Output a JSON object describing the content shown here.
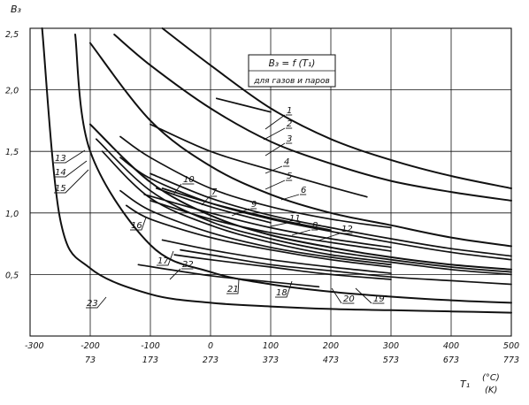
{
  "chart_data": {
    "type": "line",
    "title": "",
    "ylabel": "B₃",
    "xlabel_top": "T₁",
    "xlabel_unit_c": "(°C)",
    "xlabel_unit_k": "(K)",
    "formula": "B₃ = f (T₁)",
    "subtitle": "для газов и паров",
    "xlim": [
      -300,
      500
    ],
    "ylim": [
      0,
      2.5
    ],
    "grid": true,
    "x_ticks_c": [
      "-300",
      "-200",
      "-100",
      "0",
      "100",
      "200",
      "300",
      "400",
      "500"
    ],
    "x_ticks_k": [
      "73",
      "173",
      "273",
      "373",
      "473",
      "573",
      "673",
      "773"
    ],
    "y_ticks": [
      "2,5",
      "2,0",
      "1,5",
      "1,0",
      "0,5"
    ],
    "series": [
      {
        "name": "1",
        "x": [
          10,
          100
        ],
        "y": [
          1.93,
          1.82
        ]
      },
      {
        "name": "2",
        "x": [
          -80,
          0,
          100,
          200,
          300,
          400,
          500
        ],
        "y": [
          2.5,
          2.2,
          1.85,
          1.6,
          1.43,
          1.3,
          1.2
        ]
      },
      {
        "name": "3",
        "x": [
          -160,
          -100,
          0,
          100,
          200,
          300,
          400,
          500
        ],
        "y": [
          2.45,
          2.2,
          1.85,
          1.58,
          1.4,
          1.26,
          1.17,
          1.1
        ]
      },
      {
        "name": "4",
        "x": [
          -100,
          0,
          100,
          200,
          260
        ],
        "y": [
          1.72,
          1.5,
          1.35,
          1.21,
          1.13
        ]
      },
      {
        "name": "5",
        "x": [
          -200,
          -100,
          0,
          100,
          200,
          300,
          400,
          500
        ],
        "y": [
          2.38,
          1.75,
          1.38,
          1.15,
          1.0,
          0.9,
          0.8,
          0.73
        ]
      },
      {
        "name": "6",
        "x": [
          -150,
          -100,
          0,
          100,
          200,
          300
        ],
        "y": [
          1.62,
          1.45,
          1.2,
          1.05,
          0.95,
          0.88
        ]
      },
      {
        "name": "7",
        "x": [
          -150,
          -100,
          0,
          100,
          200,
          300,
          400,
          500
        ],
        "y": [
          1.45,
          1.28,
          1.08,
          0.95,
          0.85,
          0.76,
          0.68,
          0.62
        ]
      },
      {
        "name": "8",
        "x": [
          -100,
          0,
          100,
          200,
          300,
          400,
          500
        ],
        "y": [
          1.32,
          1.12,
          0.98,
          0.88,
          0.79,
          0.71,
          0.65
        ]
      },
      {
        "name": "9",
        "x": [
          -80,
          0,
          100,
          200
        ],
        "y": [
          1.2,
          1.08,
          0.96,
          0.86
        ]
      },
      {
        "name": "10",
        "x": [
          -90,
          0,
          100
        ],
        "y": [
          1.2,
          1.05,
          0.92
        ]
      },
      {
        "name": "11",
        "x": [
          -110,
          0,
          100,
          200,
          300
        ],
        "y": [
          1.15,
          1.0,
          0.88,
          0.79,
          0.72
        ]
      },
      {
        "name": "12",
        "x": [
          -100,
          0,
          100,
          200,
          300
        ],
        "y": [
          1.1,
          0.95,
          0.84,
          0.76,
          0.69
        ]
      },
      {
        "name": "13",
        "x": [
          -200,
          -100,
          0,
          100,
          200,
          300,
          400,
          500
        ],
        "y": [
          1.72,
          1.25,
          0.98,
          0.82,
          0.72,
          0.64,
          0.58,
          0.54
        ]
      },
      {
        "name": "14",
        "x": [
          -190,
          -100,
          0,
          100,
          200,
          300,
          400,
          500
        ],
        "y": [
          1.6,
          1.18,
          0.93,
          0.79,
          0.69,
          0.62,
          0.56,
          0.52
        ]
      },
      {
        "name": "15",
        "x": [
          -180,
          -100,
          0,
          100,
          200,
          300,
          400,
          500
        ],
        "y": [
          1.5,
          1.12,
          0.9,
          0.76,
          0.66,
          0.6,
          0.54,
          0.5
        ]
      },
      {
        "name": "16",
        "x": [
          -150,
          -100,
          0,
          100,
          200,
          300
        ],
        "y": [
          1.18,
          1.02,
          0.84,
          0.72,
          0.64,
          0.58
        ]
      },
      {
        "name": "17",
        "x": [
          -140,
          -100,
          0,
          100,
          200,
          300
        ],
        "y": [
          1.06,
          0.95,
          0.8,
          0.7,
          0.62,
          0.56
        ]
      },
      {
        "name": "18",
        "x": [
          -80,
          0,
          100,
          200,
          300
        ],
        "y": [
          0.78,
          0.7,
          0.62,
          0.56,
          0.51
        ]
      },
      {
        "name": "19",
        "x": [
          -50,
          0,
          100,
          200,
          300,
          400,
          500
        ],
        "y": [
          0.7,
          0.66,
          0.58,
          0.53,
          0.48,
          0.45,
          0.42
        ]
      },
      {
        "name": "20",
        "x": [
          -60,
          0,
          100,
          200,
          300
        ],
        "y": [
          0.66,
          0.62,
          0.56,
          0.5,
          0.46
        ]
      },
      {
        "name": "21",
        "x": [
          -120,
          0,
          100,
          180
        ],
        "y": [
          0.58,
          0.49,
          0.44,
          0.4
        ]
      },
      {
        "name": "22",
        "x": [
          -225,
          -200,
          -100,
          0,
          100,
          200,
          300,
          400,
          500
        ],
        "y": [
          2.45,
          1.5,
          0.74,
          0.52,
          0.42,
          0.36,
          0.32,
          0.29,
          0.27
        ]
      },
      {
        "name": "23",
        "x": [
          -280,
          -250,
          -200,
          -100,
          0,
          100,
          200,
          300,
          400,
          500
        ],
        "y": [
          2.5,
          0.95,
          0.55,
          0.34,
          0.27,
          0.24,
          0.22,
          0.21,
          0.2,
          0.19
        ]
      }
    ],
    "series_labels": [
      "1",
      "2",
      "3",
      "4",
      "5",
      "6",
      "7",
      "8",
      "9",
      "10",
      "11",
      "12",
      "13",
      "14",
      "15",
      "16",
      "17",
      "18",
      "19",
      "20",
      "21",
      "22",
      "23"
    ]
  }
}
